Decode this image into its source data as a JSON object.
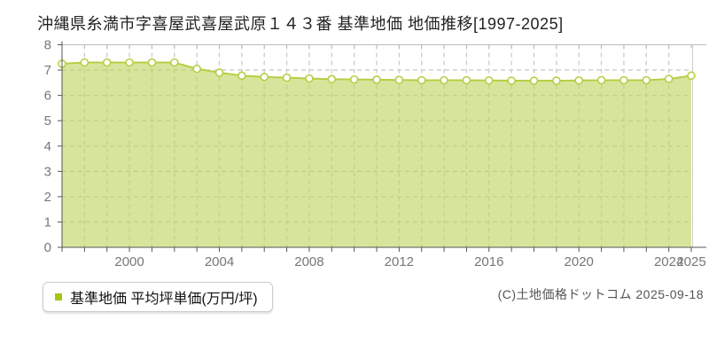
{
  "title": "沖縄県糸満市字喜屋武喜屋武原１４３番 基準地価 地価推移[1997-2025]",
  "legend": {
    "label": "基準地価 平均坪単価(万円/坪)",
    "marker_color": "#a2c812"
  },
  "copyright": "(C)土地価格ドットコム 2025-09-18",
  "chart_data": {
    "type": "area",
    "title": "沖縄県糸満市字喜屋武喜屋武原１４３番 基準地価 地価推移[1997-2025]",
    "x": [
      1997,
      1998,
      1999,
      2000,
      2001,
      2002,
      2003,
      2004,
      2005,
      2006,
      2007,
      2008,
      2009,
      2010,
      2011,
      2012,
      2013,
      2014,
      2015,
      2016,
      2017,
      2018,
      2019,
      2020,
      2021,
      2022,
      2023,
      2024,
      2025
    ],
    "series": [
      {
        "name": "基準地価 平均坪単価(万円/坪)",
        "values": [
          7.25,
          7.3,
          7.3,
          7.3,
          7.3,
          7.3,
          7.05,
          6.9,
          6.78,
          6.73,
          6.7,
          6.67,
          6.64,
          6.63,
          6.62,
          6.61,
          6.6,
          6.6,
          6.6,
          6.59,
          6.58,
          6.58,
          6.58,
          6.59,
          6.6,
          6.6,
          6.6,
          6.65,
          6.78
        ]
      }
    ],
    "ylim": [
      0,
      8
    ],
    "yticks": [
      0,
      1,
      2,
      3,
      4,
      5,
      6,
      7,
      8
    ],
    "xticks": [
      2000,
      2004,
      2008,
      2012,
      2016,
      2020,
      2024,
      2025
    ],
    "xlabel": "",
    "ylabel": "",
    "grid": true,
    "legend_position": "bottom-left",
    "colors": {
      "line": "#b4cf45",
      "fill": "#bcd45a",
      "fill_opacity": 0.6,
      "marker_fill": "#ffffff",
      "grid": "#cccccc",
      "border": "#bbbbbb",
      "axis": "#555555",
      "tick_label": "#777777"
    }
  }
}
